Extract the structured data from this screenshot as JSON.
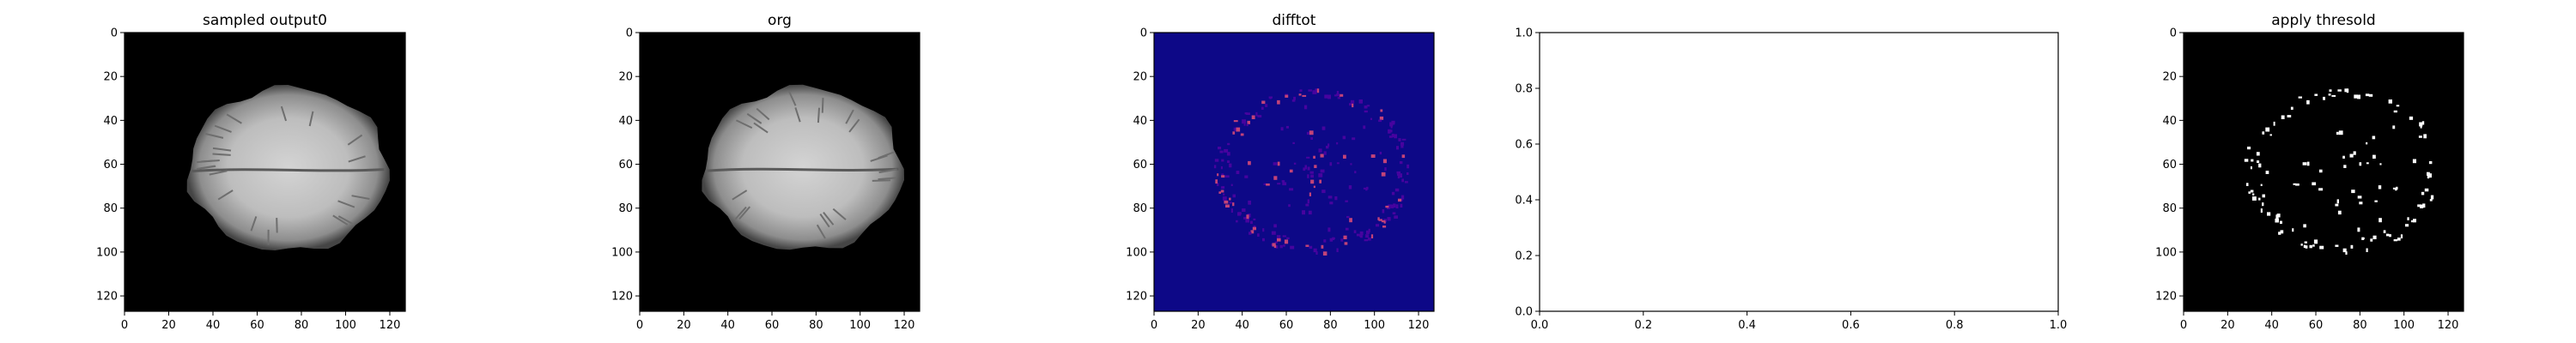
{
  "figure": {
    "panels": [
      {
        "title": "sampled output0",
        "kind": "image",
        "style": "mri-gray"
      },
      {
        "title": "org",
        "kind": "image",
        "style": "mri-gray"
      },
      {
        "title": "difftot",
        "kind": "image",
        "style": "diff-plasma"
      },
      {
        "title": "",
        "kind": "empty"
      },
      {
        "title": "apply thresold",
        "kind": "image",
        "style": "threshold-binary"
      }
    ]
  },
  "chart_data": [
    {
      "type": "heatmap",
      "title": "sampled output0",
      "xlim": [
        0,
        127
      ],
      "ylim": [
        127,
        0
      ],
      "xticks": [
        "0",
        "20",
        "40",
        "60",
        "80",
        "100",
        "120"
      ],
      "yticks": [
        "0",
        "20",
        "40",
        "60",
        "80",
        "100",
        "120"
      ],
      "colormap": "gray",
      "colors": {
        "background": "#000000",
        "tissue": "#c8c8c8"
      }
    },
    {
      "type": "heatmap",
      "title": "org",
      "xlim": [
        0,
        127
      ],
      "ylim": [
        127,
        0
      ],
      "xticks": [
        "0",
        "20",
        "40",
        "60",
        "80",
        "100",
        "120"
      ],
      "yticks": [
        "0",
        "20",
        "40",
        "60",
        "80",
        "100",
        "120"
      ],
      "colormap": "gray",
      "colors": {
        "background": "#000000",
        "tissue": "#c8c8c8"
      }
    },
    {
      "type": "heatmap",
      "title": "difftot",
      "xlim": [
        0,
        127
      ],
      "ylim": [
        127,
        0
      ],
      "xticks": [
        "0",
        "20",
        "40",
        "60",
        "80",
        "100",
        "120"
      ],
      "yticks": [
        "0",
        "20",
        "40",
        "60",
        "80",
        "100",
        "120"
      ],
      "colormap": "plasma",
      "colors": {
        "background": "#0d0887",
        "highlight": "#cc4778"
      }
    },
    {
      "type": "scatter",
      "title": "",
      "x": [],
      "y": [],
      "xlim": [
        0.0,
        1.0
      ],
      "ylim": [
        0.0,
        1.0
      ],
      "xticks": [
        "0.0",
        "0.2",
        "0.4",
        "0.6",
        "0.8",
        "1.0"
      ],
      "yticks": [
        "0.0",
        "0.2",
        "0.4",
        "0.6",
        "0.8",
        "1.0"
      ],
      "grid": false
    },
    {
      "type": "heatmap",
      "title": "apply thresold",
      "xlim": [
        0,
        127
      ],
      "ylim": [
        127,
        0
      ],
      "xticks": [
        "0",
        "20",
        "40",
        "60",
        "80",
        "100",
        "120"
      ],
      "yticks": [
        "0",
        "20",
        "40",
        "60",
        "80",
        "100",
        "120"
      ],
      "colormap": "binary",
      "colors": {
        "background": "#000000",
        "foreground": "#ffffff"
      }
    }
  ]
}
